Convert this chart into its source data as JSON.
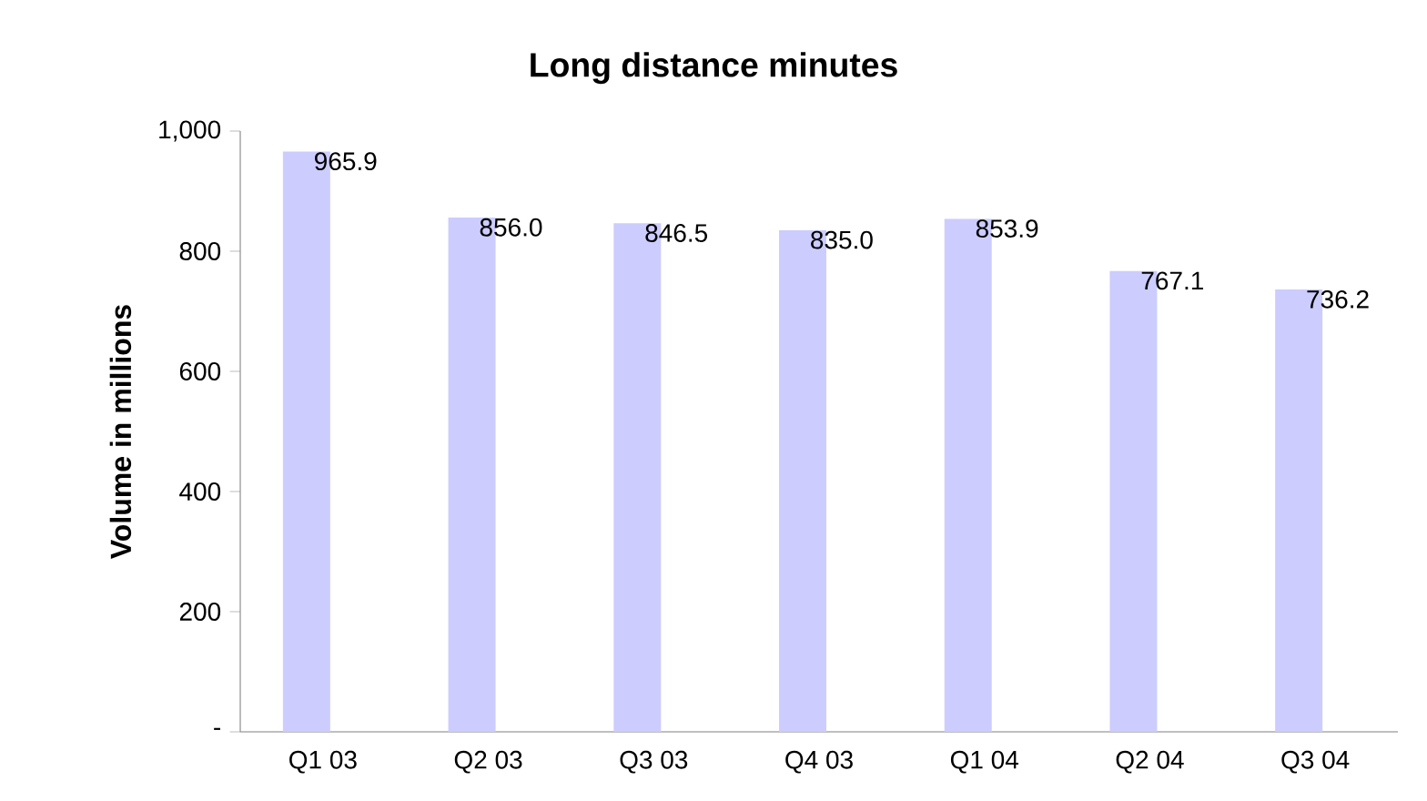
{
  "chart_data": {
    "type": "bar",
    "title": "Long distance minutes",
    "ylabel": "Volume in millions",
    "categories": [
      "Q1 03",
      "Q2 03",
      "Q3 03",
      "Q4 03",
      "Q1 04",
      "Q2 04",
      "Q3 04"
    ],
    "values": [
      965.9,
      856.0,
      846.5,
      835.0,
      853.9,
      767.1,
      736.2
    ],
    "value_labels": [
      "965.9",
      "856.0",
      "846.5",
      "835.0",
      "853.9",
      "767.1",
      "736.2"
    ],
    "color": "#ccccff",
    "ylim": [
      0,
      1000
    ],
    "yticks": [
      {
        "value": 0,
        "label": "-"
      },
      200,
      400,
      600,
      800,
      {
        "value": 1000,
        "label": "1,000"
      }
    ],
    "grid": false
  }
}
